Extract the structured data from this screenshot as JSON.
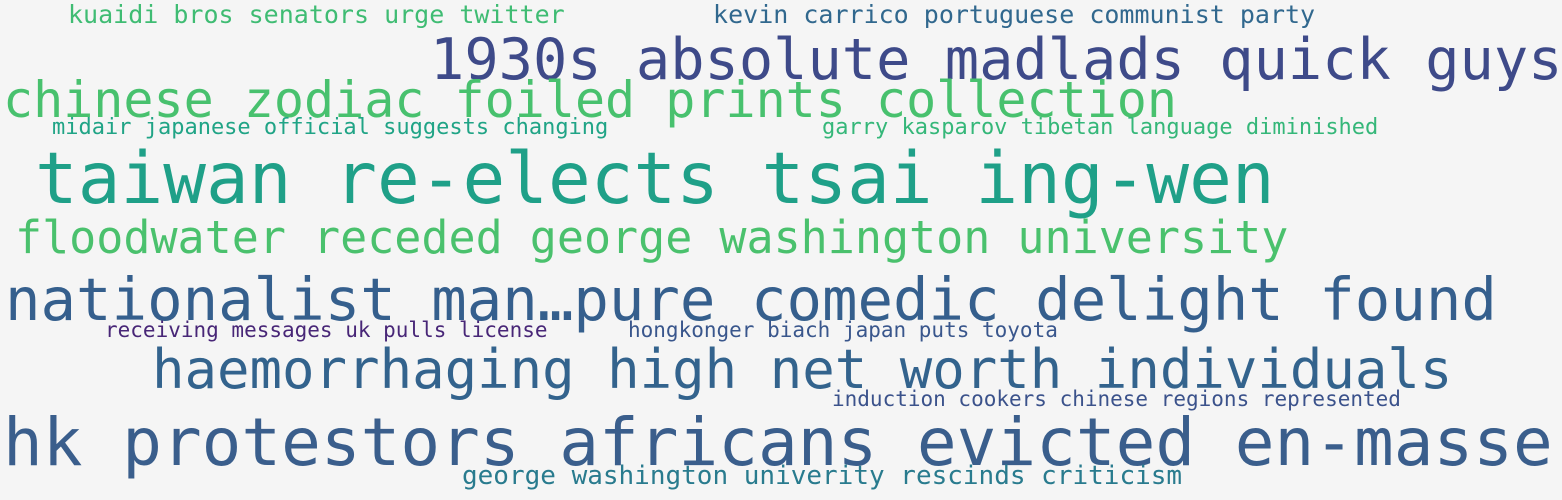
{
  "wordcloud": {
    "words": [
      {
        "text": "kuaidi bros senators urge twitter",
        "color": "#3fbc73"
      },
      {
        "text": " kevin carrico portuguese communist party",
        "color": "#31688e"
      },
      {
        "text": "1930s absolute madlads quick guys",
        "color": "#3e4a89"
      },
      {
        "text": "chinese zodiac foiled prints collection",
        "color": "#48c16e"
      },
      {
        "text": "midair japanese official suggests changing",
        "color": "#20a486"
      },
      {
        "text": "garry kasparov tibetan language diminished",
        "color": "#35b779"
      },
      {
        "text": "taiwan re-elects tsai ing-wen",
        "color": "#1fa088"
      },
      {
        "text": "floodwater receded george washington university",
        "color": "#4ac16d"
      },
      {
        "text": "nationalist man…pure comedic delight found",
        "color": "#355f8d"
      },
      {
        "text": "receiving messages uk pulls license",
        "color": "#482677"
      },
      {
        "text": "hongkonger biach japan puts toyota",
        "color": "#39568c"
      },
      {
        "text": "haemorrhaging high net worth individuals",
        "color": "#33638d"
      },
      {
        "text": "induction cookers chinese regions represented",
        "color": "#3b528b"
      },
      {
        "text": "hk protestors africans evicted en-masse",
        "color": "#3a5e8c"
      },
      {
        "text": "george washington univerity rescinds criticism",
        "color": "#297b8e"
      }
    ]
  }
}
